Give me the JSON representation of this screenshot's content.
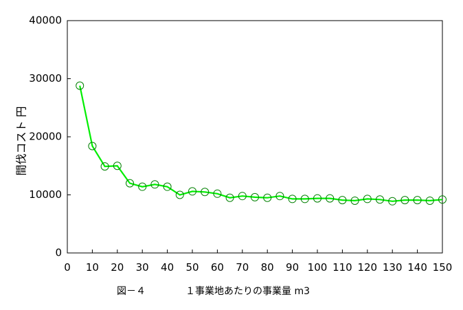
{
  "chart_data": {
    "type": "line",
    "title": "",
    "ylabel": "間伐コスト 円",
    "xlabel": "",
    "caption_figure": "図－４",
    "caption_text": "１事業地あたりの事業量 m3",
    "xlim": [
      0,
      150
    ],
    "ylim": [
      0,
      40000
    ],
    "x_ticks": [
      0,
      10,
      20,
      30,
      40,
      50,
      60,
      70,
      80,
      90,
      100,
      110,
      120,
      130,
      140,
      150
    ],
    "y_ticks": [
      0,
      10000,
      20000,
      30000,
      40000
    ],
    "grid": false,
    "legend": "none",
    "line_color": "#00ee00",
    "marker_color": "#008000",
    "marker": "open-circle",
    "series": [
      {
        "x": [
          5,
          10,
          15,
          20,
          25,
          30,
          35,
          40,
          45,
          50,
          55,
          60,
          65,
          70,
          75,
          80,
          85,
          90,
          95,
          100,
          105,
          110,
          115,
          120,
          125,
          130,
          135,
          140,
          145,
          150
        ],
        "y": [
          28800,
          18400,
          14900,
          15000,
          12000,
          11400,
          11800,
          11400,
          10000,
          10600,
          10500,
          10200,
          9500,
          9800,
          9600,
          9500,
          9800,
          9300,
          9300,
          9400,
          9400,
          9100,
          9000,
          9300,
          9200,
          8900,
          9100,
          9100,
          9000,
          9200
        ]
      }
    ]
  }
}
